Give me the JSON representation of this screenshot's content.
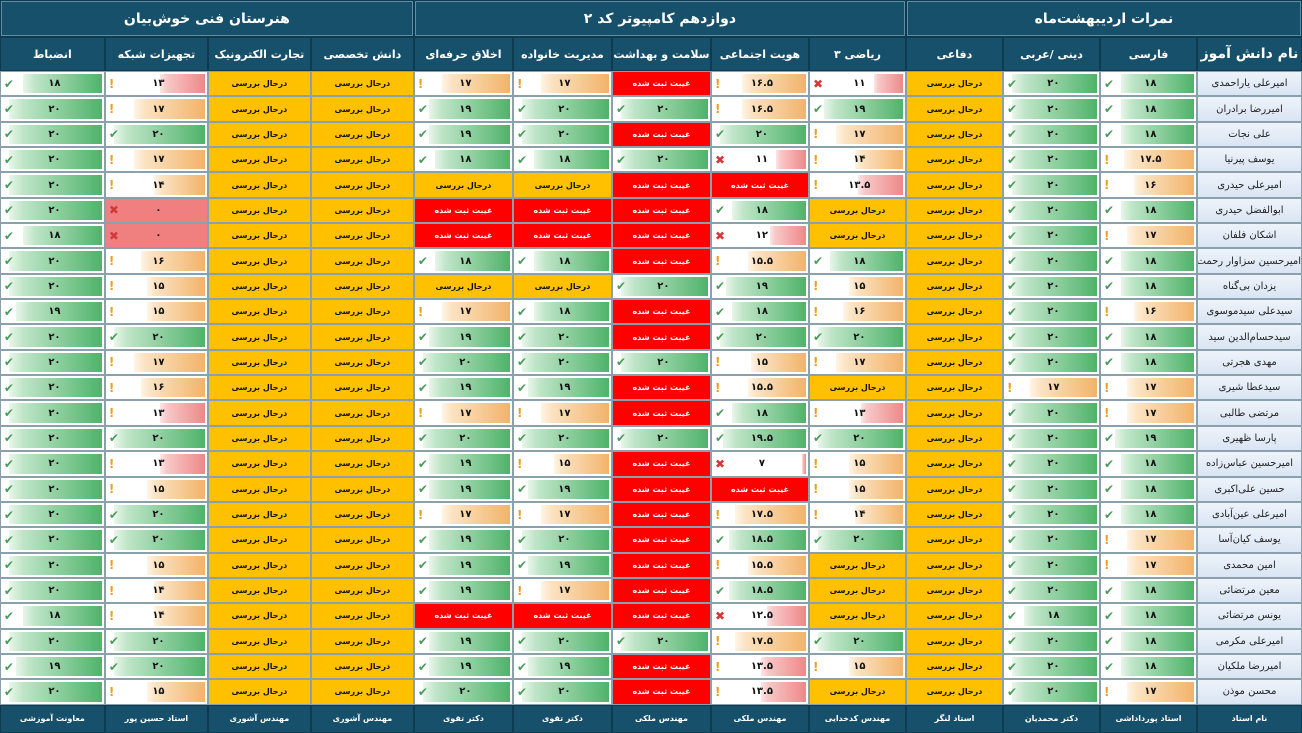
{
  "header": {
    "left_title": "نمرات اردیبهشت‌ماه",
    "center_title": "دوازدهم کامپیوتر کد ۲",
    "right_title": "هنرستان فنی خوش‌بیان"
  },
  "columns": {
    "name": "نام دانش آموز",
    "subjects": [
      "فارسی",
      "دینی /عربی",
      "دفاعی",
      "ریاضی ۳",
      "هویت اجتماعی",
      "سلامت و بهداشت",
      "مدیریت خانواده",
      "اخلاق حرفه‌ای",
      "دانش تخصصی",
      "تجارت الکترونیک",
      "تجهیزات شبکه",
      "انضباط"
    ]
  },
  "teachers": [
    "نام استاد",
    "استاد پورداداشی",
    "دکتر محمدیان",
    "استاد لنگر",
    "مهندس کدخدایی",
    "مهندس ملکی",
    "مهندس ملکی",
    "دکتر تقوی",
    "دکتر تقوی",
    "مهندس آشوری",
    "مهندس آشوری",
    "استاد حسین پور",
    "معاونت آموزشی"
  ],
  "labels": {
    "pending": "درحال بررسی",
    "absent": "غیبت ثبت شده"
  },
  "colors": {
    "header_bg": "#17506b",
    "pending": "#ffc000",
    "absent": "#ff0000",
    "high": "#4fb36a",
    "mid": "#f2b36a",
    "low": "#ee8888"
  },
  "students": [
    {
      "name": "امیرعلی یاراحمدی",
      "scores": [
        "18",
        "20",
        "P",
        "11",
        "16.5",
        "A",
        "17",
        "17",
        "P",
        "P",
        "13",
        "18"
      ]
    },
    {
      "name": "امیررضا برادران",
      "scores": [
        "18",
        "20",
        "P",
        "19",
        "16.5",
        "20",
        "20",
        "19",
        "P",
        "P",
        "17",
        "20"
      ]
    },
    {
      "name": "علی نجات",
      "scores": [
        "18",
        "20",
        "P",
        "17",
        "20",
        "A",
        "20",
        "19",
        "P",
        "P",
        "20",
        "20"
      ]
    },
    {
      "name": "یوسف پیرنیا",
      "scores": [
        "17.5",
        "20",
        "P",
        "14",
        "11",
        "20",
        "18",
        "18",
        "P",
        "P",
        "17",
        "20"
      ]
    },
    {
      "name": "امیرعلی حیدری",
      "scores": [
        "16",
        "20",
        "P",
        "13.5",
        "A",
        "A",
        "P",
        "P",
        "P",
        "P",
        "14",
        "20"
      ]
    },
    {
      "name": "ابوالفضل حیدری",
      "scores": [
        "18",
        "20",
        "P",
        "P",
        "18",
        "A",
        "A",
        "A",
        "P",
        "P",
        "0",
        "20"
      ]
    },
    {
      "name": "اشکان فلفان",
      "scores": [
        "17",
        "20",
        "P",
        "P",
        "12",
        "A",
        "A",
        "A",
        "P",
        "P",
        "0",
        "18"
      ]
    },
    {
      "name": "امیرحسین سزاوار رحمت",
      "scores": [
        "18",
        "20",
        "P",
        "18",
        "15.5",
        "A",
        "18",
        "18",
        "P",
        "P",
        "16",
        "20"
      ]
    },
    {
      "name": "یزدان بی‌گناه",
      "scores": [
        "18",
        "20",
        "P",
        "15",
        "19",
        "20",
        "P",
        "P",
        "P",
        "P",
        "15",
        "20"
      ]
    },
    {
      "name": "سیدعلی سیدموسوی",
      "scores": [
        "16",
        "20",
        "P",
        "16",
        "18",
        "A",
        "18",
        "17",
        "P",
        "P",
        "15",
        "19"
      ]
    },
    {
      "name": "سیدحسام‌الدین سید",
      "scores": [
        "18",
        "20",
        "P",
        "20",
        "20",
        "A",
        "20",
        "19",
        "P",
        "P",
        "20",
        "20"
      ]
    },
    {
      "name": "مهدی هجرتی",
      "scores": [
        "18",
        "20",
        "P",
        "17",
        "15",
        "20",
        "20",
        "20",
        "P",
        "P",
        "17",
        "20"
      ]
    },
    {
      "name": "سیدعطا شیری",
      "scores": [
        "17",
        "17",
        "P",
        "P",
        "15.5",
        "A",
        "19",
        "19",
        "P",
        "P",
        "16",
        "20"
      ]
    },
    {
      "name": "مرتضی طالبی",
      "scores": [
        "17",
        "20",
        "P",
        "13",
        "18",
        "A",
        "17",
        "17",
        "P",
        "P",
        "13",
        "20"
      ]
    },
    {
      "name": "پارسا ظهیری",
      "scores": [
        "19",
        "20",
        "P",
        "20",
        "19.5",
        "20",
        "20",
        "20",
        "P",
        "P",
        "20",
        "20"
      ]
    },
    {
      "name": "امیرحسین عباس‌زاده",
      "scores": [
        "18",
        "20",
        "P",
        "15",
        "7",
        "A",
        "15",
        "19",
        "P",
        "P",
        "13",
        "20"
      ]
    },
    {
      "name": "حسین علی‌اکبری",
      "scores": [
        "18",
        "20",
        "P",
        "15",
        "A",
        "A",
        "19",
        "19",
        "P",
        "P",
        "15",
        "20"
      ]
    },
    {
      "name": "امیرعلی عین‌آبادی",
      "scores": [
        "18",
        "20",
        "P",
        "14",
        "17.5",
        "A",
        "17",
        "17",
        "P",
        "P",
        "20",
        "20"
      ]
    },
    {
      "name": "یوسف کیان‌آسا",
      "scores": [
        "17",
        "20",
        "P",
        "20",
        "18.5",
        "A",
        "20",
        "19",
        "P",
        "P",
        "20",
        "20"
      ]
    },
    {
      "name": "امین محمدی",
      "scores": [
        "17",
        "20",
        "P",
        "P",
        "15.5",
        "A",
        "19",
        "19",
        "P",
        "P",
        "15",
        "20"
      ]
    },
    {
      "name": "معین مرتضائی",
      "scores": [
        "18",
        "20",
        "P",
        "P",
        "18.5",
        "A",
        "17",
        "19",
        "P",
        "P",
        "14",
        "20"
      ]
    },
    {
      "name": "یونس مرتضائی",
      "scores": [
        "18",
        "18",
        "P",
        "P",
        "12.5",
        "A",
        "A",
        "A",
        "P",
        "P",
        "14",
        "18"
      ]
    },
    {
      "name": "امیرعلی مکرمی",
      "scores": [
        "18",
        "20",
        "P",
        "20",
        "17.5",
        "20",
        "20",
        "19",
        "P",
        "P",
        "20",
        "20"
      ]
    },
    {
      "name": "امیررضا ملکیان",
      "scores": [
        "18",
        "20",
        "P",
        "15",
        "13.5",
        "A",
        "19",
        "19",
        "P",
        "P",
        "20",
        "19"
      ]
    },
    {
      "name": "محسن موذن",
      "scores": [
        "17",
        "20",
        "P",
        "P",
        "13.5",
        "A",
        "20",
        "20",
        "P",
        "P",
        "15",
        "20"
      ]
    }
  ]
}
